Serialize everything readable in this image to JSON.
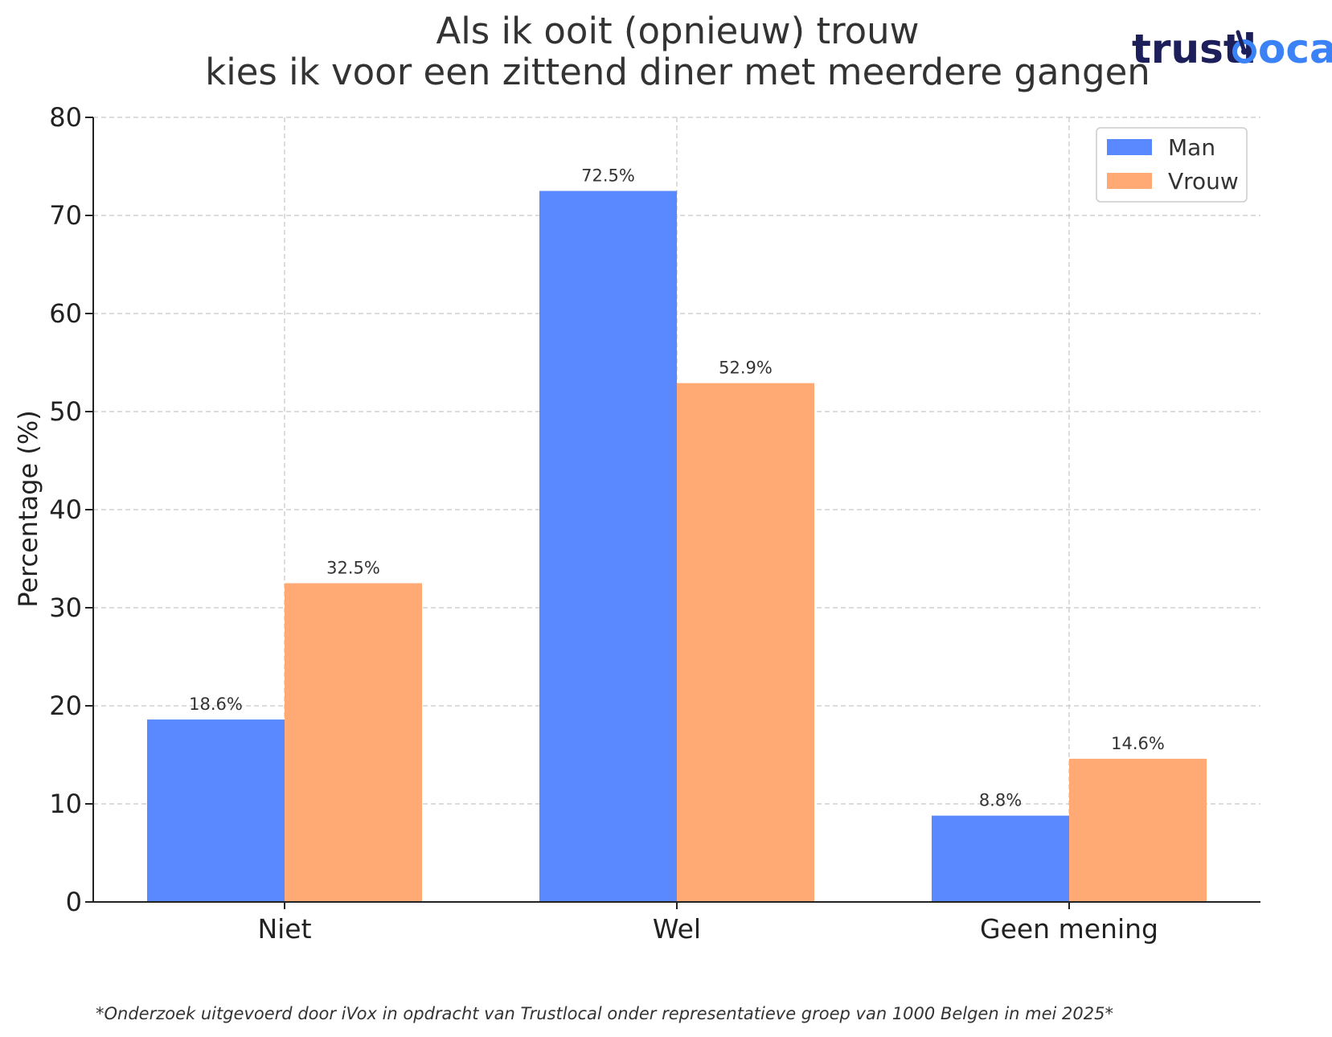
{
  "logo": {
    "text_dark": "trustl",
    "text_blue": "cal",
    "colors": {
      "dark": "#1c1f5a",
      "blue": "#3b82f6"
    }
  },
  "footnote": "*Onderzoek uitgevoerd door iVox in opdracht van Trustlocal onder representatieve groep van 1000 Belgen in mei 2025*",
  "chart_data": {
    "type": "bar",
    "title_lines": [
      "Als ik ooit (opnieuw) trouw",
      "kies ik voor een zittend diner met meerdere gangen"
    ],
    "xlabel": "",
    "ylabel": "Percentage (%)",
    "categories": [
      "Niet",
      "Wel",
      "Geen mening"
    ],
    "series": [
      {
        "name": "Man",
        "color": "#5988ff",
        "values": [
          18.6,
          72.5,
          8.8
        ],
        "labels": [
          "18.6%",
          "72.5%",
          "8.8%"
        ]
      },
      {
        "name": "Vrouw",
        "color": "#ffaa75",
        "values": [
          32.5,
          52.9,
          14.6
        ],
        "labels": [
          "32.5%",
          "52.9%",
          "14.6%"
        ]
      }
    ],
    "ylim": [
      0,
      80
    ],
    "yticks": [
      0,
      10,
      20,
      30,
      40,
      50,
      60,
      70,
      80
    ],
    "ytick_labels": [
      "0",
      "10",
      "20",
      "30",
      "40",
      "50",
      "60",
      "70",
      "80"
    ],
    "grid": true,
    "legend_position": "top-right"
  }
}
